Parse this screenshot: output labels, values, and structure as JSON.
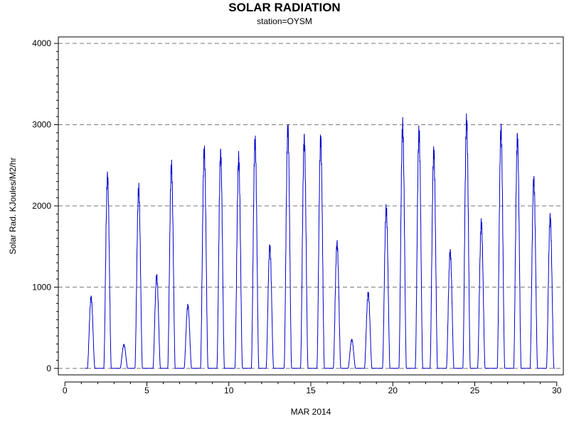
{
  "chart_data": {
    "type": "line",
    "title": "SOLAR RADIATION",
    "subtitle": "station=OYSM",
    "xlabel": "MAR 2014",
    "ylabel": "Solar Rad. KJoules/M2/hr",
    "xlim": [
      -0.4,
      30.4
    ],
    "ylim": [
      -80,
      4080
    ],
    "xticks": [
      0,
      5,
      10,
      15,
      20,
      25,
      30
    ],
    "yticks": [
      0,
      1000,
      2000,
      3000,
      4000
    ],
    "grid": "horizontal dashed at major y ticks",
    "line_color": "#0000cc",
    "daily_peaks": [
      {
        "day": 1.6,
        "value": 870
      },
      {
        "day": 2.6,
        "value": 2350
      },
      {
        "day": 3.6,
        "value": 290
      },
      {
        "day": 4.5,
        "value": 2210
      },
      {
        "day": 5.6,
        "value": 1130
      },
      {
        "day": 6.5,
        "value": 2490
      },
      {
        "day": 7.5,
        "value": 770
      },
      {
        "day": 8.5,
        "value": 2670
      },
      {
        "day": 9.5,
        "value": 2630
      },
      {
        "day": 10.6,
        "value": 2580
      },
      {
        "day": 11.6,
        "value": 2790
      },
      {
        "day": 12.5,
        "value": 1490
      },
      {
        "day": 13.6,
        "value": 2940
      },
      {
        "day": 14.6,
        "value": 2810
      },
      {
        "day": 15.6,
        "value": 2810
      },
      {
        "day": 16.6,
        "value": 1530
      },
      {
        "day": 17.5,
        "value": 350
      },
      {
        "day": 18.5,
        "value": 920
      },
      {
        "day": 19.6,
        "value": 1960
      },
      {
        "day": 20.6,
        "value": 2980
      },
      {
        "day": 21.6,
        "value": 2900
      },
      {
        "day": 22.5,
        "value": 2660
      },
      {
        "day": 23.5,
        "value": 1430
      },
      {
        "day": 24.5,
        "value": 3040
      },
      {
        "day": 25.4,
        "value": 1790
      },
      {
        "day": 26.6,
        "value": 2920
      },
      {
        "day": 27.6,
        "value": 2820
      },
      {
        "day": 28.6,
        "value": 2310
      },
      {
        "day": 29.6,
        "value": 1850
      }
    ]
  }
}
